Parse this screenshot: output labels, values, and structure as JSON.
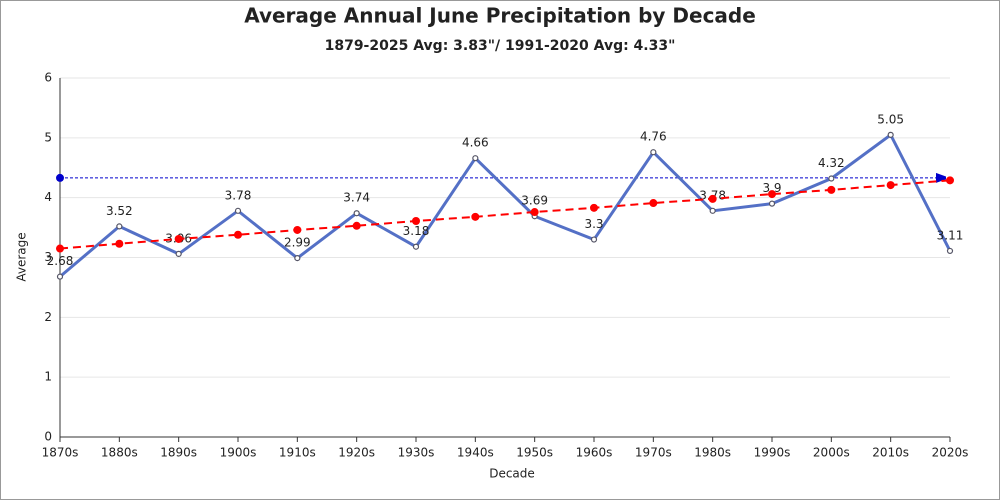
{
  "chart_data": {
    "type": "line",
    "title": "Average Annual June Precipitation by Decade",
    "subtitle": "1879-2025 Avg: 3.83\"/ 1991-2020 Avg: 4.33\"",
    "x_label": "Decade",
    "y_label": "Average",
    "categories": [
      "1870s",
      "1880s",
      "1890s",
      "1900s",
      "1910s",
      "1920s",
      "1930s",
      "1940s",
      "1950s",
      "1960s",
      "1970s",
      "1980s",
      "1990s",
      "2000s",
      "2010s",
      "2020s"
    ],
    "series": [
      {
        "color": "#5470c6",
        "values": [
          2.68,
          3.52,
          3.06,
          3.78,
          2.99,
          3.74,
          3.18,
          4.66,
          3.69,
          3.3,
          4.76,
          3.78,
          3.9,
          4.32,
          5.05,
          3.11
        ],
        "labels": true
      },
      {
        "color": "#ff0000",
        "dashed": true,
        "values": [
          3.15,
          3.23,
          3.31,
          3.38,
          3.46,
          3.53,
          3.61,
          3.68,
          3.76,
          3.83,
          3.91,
          3.98,
          4.06,
          4.13,
          4.21,
          4.29
        ],
        "labels": false
      }
    ],
    "reference_line": {
      "value": 4.33,
      "color": "#0000cc"
    },
    "ylim": [
      0,
      6
    ],
    "yticks": [
      0,
      1,
      2,
      3,
      4,
      5,
      6
    ],
    "grid": true
  }
}
